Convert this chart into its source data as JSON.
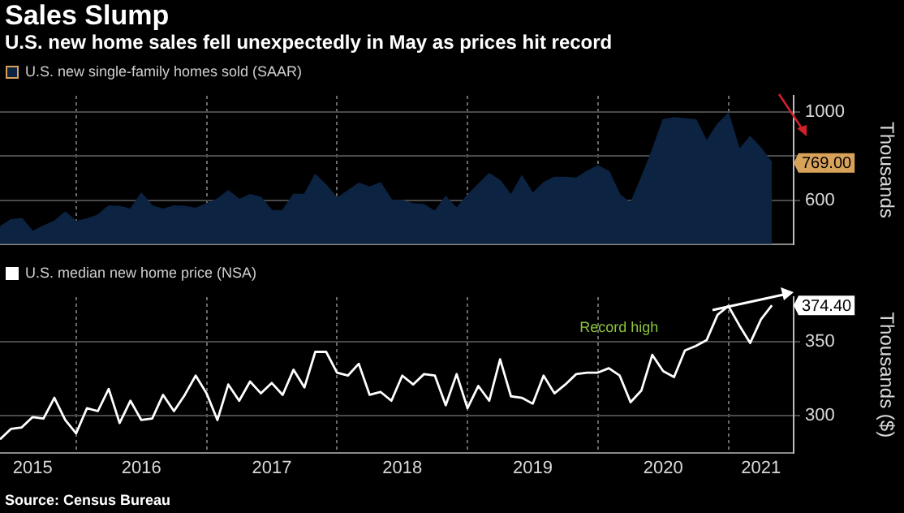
{
  "chart_data": [
    {
      "type": "area",
      "title": "Sales Slump",
      "subtitle": "U.S. new home sales fell unexpectedly in May as prices hit record",
      "ylabel": "Thousands",
      "legend": "top left",
      "grid": true,
      "tick_labels": "y",
      "x": [
        "2015-06",
        "2015-07",
        "2015-08",
        "2015-09",
        "2015-10",
        "2015-11",
        "2015-12",
        "2016-01",
        "2016-02",
        "2016-03",
        "2016-04",
        "2016-05",
        "2016-06",
        "2016-07",
        "2016-08",
        "2016-09",
        "2016-10",
        "2016-11",
        "2016-12",
        "2017-01",
        "2017-02",
        "2017-03",
        "2017-04",
        "2017-05",
        "2017-06",
        "2017-07",
        "2017-08",
        "2017-09",
        "2017-10",
        "2017-11",
        "2017-12",
        "2018-01",
        "2018-02",
        "2018-03",
        "2018-04",
        "2018-05",
        "2018-06",
        "2018-07",
        "2018-08",
        "2018-09",
        "2018-10",
        "2018-11",
        "2018-12",
        "2019-01",
        "2019-02",
        "2019-03",
        "2019-04",
        "2019-05",
        "2019-06",
        "2019-07",
        "2019-08",
        "2019-09",
        "2019-10",
        "2019-11",
        "2019-12",
        "2020-01",
        "2020-02",
        "2020-03",
        "2020-04",
        "2020-05",
        "2020-06",
        "2020-07",
        "2020-08",
        "2020-09",
        "2020-10",
        "2020-11",
        "2020-12",
        "2021-01",
        "2021-02",
        "2021-03",
        "2021-04",
        "2021-05"
      ],
      "series": [
        {
          "name": "U.S. new single-family homes sold (SAAR)",
          "color": "#0c2342",
          "values": [
            478,
            510,
            516,
            457,
            482,
            503,
            545,
            503,
            514,
            531,
            573,
            571,
            558,
            630,
            573,
            558,
            573,
            571,
            562,
            583,
            604,
            642,
            602,
            625,
            612,
            552,
            552,
            625,
            625,
            715,
            667,
            608,
            642,
            676,
            659,
            678,
            600,
            598,
            583,
            579,
            548,
            615,
            562,
            621,
            671,
            720,
            688,
            621,
            709,
            629,
            678,
            703,
            703,
            699,
            730,
            755,
            730,
            625,
            583,
            701,
            825,
            965,
            974,
            970,
            965,
            867,
            944,
            993,
            829,
            888,
            835,
            769
          ]
        }
      ],
      "xlim": [
        "2015-06",
        "2021-07"
      ],
      "xticks": [
        {
          "value": "2016",
          "label": null
        },
        {
          "value": "2017",
          "label": null
        },
        {
          "value": "2018",
          "label": null
        },
        {
          "value": "2019",
          "label": null
        },
        {
          "value": "2020",
          "label": null
        },
        {
          "value": "2021",
          "label": null
        }
      ],
      "ylim": [
        400,
        1075
      ],
      "yticks": [
        600,
        {
          "value": 800,
          "label": null
        },
        1000
      ],
      "annotations": [
        {
          "text": "769.00",
          "x": "2021-05",
          "y": 769
        }
      ]
    },
    {
      "type": "line",
      "ylabel": "Thousands ($)",
      "legend": "top left",
      "grid": true,
      "x": [
        "2015-06",
        "2015-07",
        "2015-08",
        "2015-09",
        "2015-10",
        "2015-11",
        "2015-12",
        "2016-01",
        "2016-02",
        "2016-03",
        "2016-04",
        "2016-05",
        "2016-06",
        "2016-07",
        "2016-08",
        "2016-09",
        "2016-10",
        "2016-11",
        "2016-12",
        "2017-01",
        "2017-02",
        "2017-03",
        "2017-04",
        "2017-05",
        "2017-06",
        "2017-07",
        "2017-08",
        "2017-09",
        "2017-10",
        "2017-11",
        "2017-12",
        "2018-01",
        "2018-02",
        "2018-03",
        "2018-04",
        "2018-05",
        "2018-06",
        "2018-07",
        "2018-08",
        "2018-09",
        "2018-10",
        "2018-11",
        "2018-12",
        "2019-01",
        "2019-02",
        "2019-03",
        "2019-04",
        "2019-05",
        "2019-06",
        "2019-07",
        "2019-08",
        "2019-09",
        "2019-10",
        "2019-11",
        "2019-12",
        "2020-01",
        "2020-02",
        "2020-03",
        "2020-04",
        "2020-05",
        "2020-06",
        "2020-07",
        "2020-08",
        "2020-09",
        "2020-10",
        "2020-11",
        "2020-12",
        "2021-01",
        "2021-02",
        "2021-03",
        "2021-04",
        "2021-05"
      ],
      "series": [
        {
          "name": "U.S. median new home price (NSA)",
          "color": "#ffffff",
          "values": [
            284,
            291,
            292,
            299,
            298,
            312,
            297,
            288,
            305,
            303,
            318,
            295,
            310,
            297,
            298,
            314,
            303,
            314,
            327,
            315,
            297,
            321,
            310,
            323,
            315,
            322,
            314,
            331,
            319,
            343,
            343,
            329,
            327,
            335,
            314,
            316,
            310,
            327,
            321,
            328,
            327,
            307,
            328,
            305,
            320,
            310,
            338,
            313,
            312,
            308,
            327,
            315,
            321,
            328,
            329,
            329,
            332,
            327,
            309,
            317,
            341,
            330,
            326,
            344,
            347,
            351,
            368,
            374,
            361,
            349,
            365,
            374.4
          ]
        }
      ],
      "xlim": [
        "2015-06",
        "2021-07"
      ],
      "xticks": [
        {
          "value": "2015-09",
          "label": "2015"
        },
        {
          "value": "2016",
          "label": null
        },
        {
          "value": "2016-07",
          "label": "2016"
        },
        {
          "value": "2017",
          "label": null
        },
        {
          "value": "2017-07",
          "label": "2017"
        },
        {
          "value": "2018",
          "label": null
        },
        {
          "value": "2018-07",
          "label": "2018"
        },
        {
          "value": "2019",
          "label": null
        },
        {
          "value": "2019-07",
          "label": "2019"
        },
        {
          "value": "2020",
          "label": null
        },
        {
          "value": "2020-07",
          "label": "2020"
        },
        {
          "value": "2021",
          "label": null
        },
        {
          "value": "2021-04",
          "label": "2021"
        }
      ],
      "ylim": [
        275,
        380
      ],
      "yticks": [
        300,
        350
      ],
      "annotations": [
        {
          "text": "374.40",
          "x": "2021-05",
          "y": 374.4
        },
        "Record high",
        "Source: Census Bureau"
      ]
    }
  ]
}
